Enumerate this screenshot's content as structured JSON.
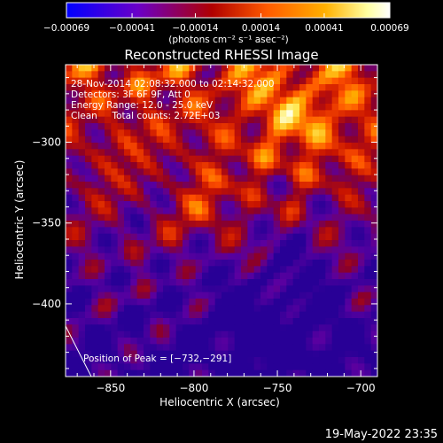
{
  "chart_data": {
    "type": "heatmap",
    "title": "Reconstructed RHESSI Image",
    "xlabel": "Heliocentric X (arcsec)",
    "ylabel": "Heliocentric Y (arcsec)",
    "xlim": [
      -877,
      -690
    ],
    "ylim": [
      -445,
      -252
    ],
    "x_ticks": [
      -850,
      -800,
      -750,
      -700
    ],
    "x_tick_labels": [
      "−850",
      "−800",
      "−750",
      "−700"
    ],
    "y_ticks": [
      -300,
      -350,
      -400
    ],
    "y_tick_labels": [
      "−300",
      "−350",
      "−400"
    ],
    "colorbar": {
      "range": [
        -0.00069,
        0.00069
      ],
      "tick_values": [
        -0.00069,
        -0.00041,
        -0.00014,
        0.00014,
        0.00041,
        0.00069
      ],
      "tick_labels": [
        "−0.00069",
        "−0.00041",
        "−0.00014",
        "0.00014",
        "0.00041",
        "0.00069"
      ],
      "unit_label": "(photons cm⁻² s⁻¹ asec⁻²)",
      "colormap": [
        "#0000ff",
        "#6a00c8",
        "#b00000",
        "#ff5a00",
        "#ffb000",
        "#ffffa0",
        "#ffffff"
      ]
    },
    "annotations": [
      "28-Nov-2014 02:08:32.000 to 02:14:32.000",
      "Detectors: 3F 6F 9F, Att 0",
      "Energy Range: 12.0 - 25.0 keV",
      "Clean     Total counts: 2.72E+03"
    ],
    "peak": {
      "label": "Position of Peak = [−732,−291]",
      "x": -732,
      "y": -291
    },
    "grid": false,
    "legend": "none"
  },
  "footer": {
    "timestamp": "19-May-2022 23:35"
  }
}
